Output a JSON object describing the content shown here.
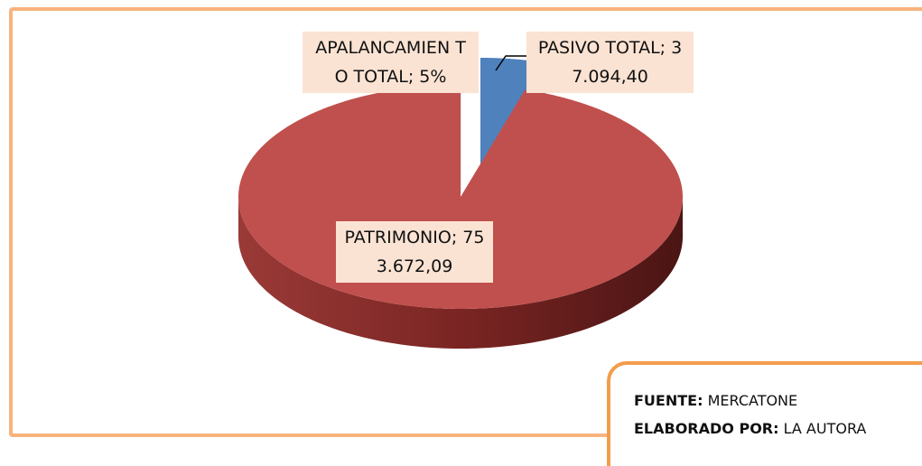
{
  "chart_data": {
    "type": "pie3d",
    "values": [
      5,
      37094.4,
      753672.09
    ],
    "value_labels": [
      "APALANCAMIEN TO TOTAL; 5%",
      "PASIVO TOTAL; 37.094,40",
      "PATRIMONIO; 753.672,09"
    ],
    "colors": [
      "#ffffff",
      "#4f81bd",
      "#c0504d"
    ]
  },
  "note": {
    "source_label": "FUENTE:",
    "source": "MERCATONE",
    "author_label": "ELABORADO POR:",
    "author": "LA AUTORA"
  }
}
